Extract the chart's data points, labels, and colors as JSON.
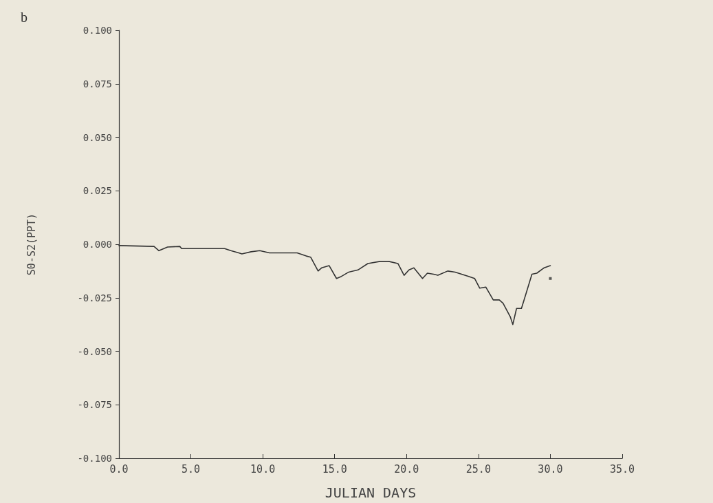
{
  "chart_data": {
    "type": "line",
    "xlabel": "JULIAN DAYS",
    "ylabel": "S0-S2(PPT)",
    "annotations": [
      "b"
    ],
    "xlim": [
      0,
      35
    ],
    "ylim": [
      -0.1,
      0.1
    ],
    "xticks": [
      {
        "value": 0,
        "label": "0.0"
      },
      {
        "value": 5,
        "label": "5.0"
      },
      {
        "value": 10,
        "label": "10.0"
      },
      {
        "value": 15,
        "label": "15.0"
      },
      {
        "value": 20,
        "label": "20.0"
      },
      {
        "value": 25,
        "label": "25.0"
      },
      {
        "value": 30,
        "label": "30.0"
      },
      {
        "value": 35,
        "label": "35.0"
      }
    ],
    "yticks": [
      {
        "value": -0.1,
        "label": "-0.100"
      },
      {
        "value": -0.075,
        "label": "-0.075"
      },
      {
        "value": -0.05,
        "label": "-0.050"
      },
      {
        "value": -0.025,
        "label": "-0.025"
      },
      {
        "value": 0,
        "label": "0.000"
      },
      {
        "value": 0.025,
        "label": "0.025"
      },
      {
        "value": 0.05,
        "label": "0.050"
      },
      {
        "value": 0.075,
        "label": "0.075"
      },
      {
        "value": 0.1,
        "label": "0.100"
      }
    ],
    "grid": false,
    "marker": "none",
    "line_style": "solid",
    "series": [
      {
        "color": "#333333",
        "x": [
          0,
          2.44,
          2.78,
          3.38,
          4.23,
          4.36,
          7.35,
          7.78,
          8.33,
          8.55,
          9.19,
          9.79,
          10.47,
          12.05,
          12.39,
          13.03,
          13.33,
          13.85,
          14.1,
          14.62,
          15.13,
          15.47,
          15.98,
          16.62,
          17.31,
          18.16,
          18.76,
          19.4,
          19.83,
          20.17,
          20.51,
          21.11,
          21.45,
          21.88,
          22.18,
          22.86,
          23.38,
          24.32,
          24.74,
          25.09,
          25.51,
          26.03,
          26.45,
          26.71,
          27.22,
          27.39,
          27.65,
          27.99,
          28.29,
          28.72,
          29.06,
          29.57,
          30.0
        ],
        "values": [
          -0.0006,
          -0.001,
          -0.003,
          -0.0013,
          -0.001,
          -0.002,
          -0.002,
          -0.003,
          -0.004,
          -0.0045,
          -0.0035,
          -0.003,
          -0.004,
          -0.004,
          -0.004,
          -0.0055,
          -0.006,
          -0.0125,
          -0.011,
          -0.01,
          -0.016,
          -0.015,
          -0.013,
          -0.012,
          -0.009,
          -0.008,
          -0.008,
          -0.009,
          -0.0145,
          -0.012,
          -0.011,
          -0.016,
          -0.0135,
          -0.014,
          -0.0145,
          -0.0125,
          -0.013,
          -0.015,
          -0.016,
          -0.0205,
          -0.02,
          -0.026,
          -0.026,
          -0.0275,
          -0.034,
          -0.0375,
          -0.03,
          -0.03,
          -0.0235,
          -0.014,
          -0.0135,
          -0.011,
          -0.01
        ]
      },
      {
        "type": "scatter",
        "marker": "square",
        "color": "#333333",
        "x": [
          30.0
        ],
        "values": [
          -0.016
        ]
      }
    ]
  }
}
